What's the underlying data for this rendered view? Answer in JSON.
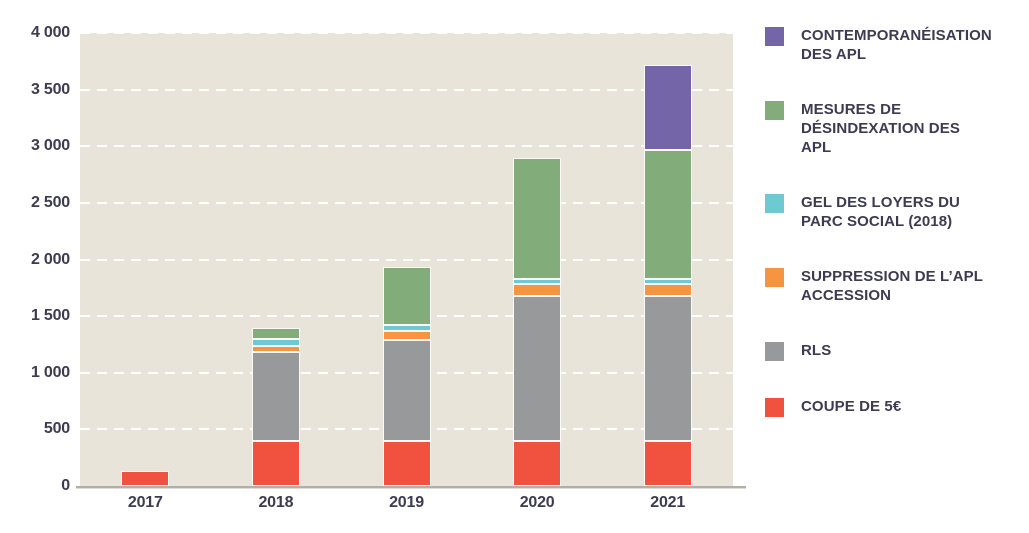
{
  "chart_data": {
    "type": "bar",
    "stacked": true,
    "categories": [
      "2017",
      "2018",
      "2019",
      "2020",
      "2021"
    ],
    "series": [
      {
        "key": "coupe-de-5e",
        "name": "COUPE DE 5€",
        "color": "#f0523f",
        "values": [
          130,
          400,
          400,
          400,
          400
        ],
        "legend_lines": [
          "COUPE DE 5€"
        ]
      },
      {
        "key": "rls",
        "name": "RLS",
        "color": "#98999b",
        "values": [
          0,
          780,
          890,
          1280,
          1280
        ],
        "legend_lines": [
          "RLS"
        ]
      },
      {
        "key": "suppression-apl-accession",
        "name": "SUPPRESSION DE L’APL ACCESSION",
        "color": "#f79441",
        "values": [
          0,
          60,
          75,
          100,
          100
        ],
        "legend_lines": [
          "SUPPRESSION DE L’APL",
          "ACCESSION"
        ]
      },
      {
        "key": "gel-loyers-parc-social",
        "name": "GEL DES LOYERS DU PARC SOCIAL (2018)",
        "color": "#6fc9d2",
        "values": [
          0,
          60,
          60,
          50,
          50
        ],
        "legend_lines": [
          "GEL DES LOYERS DU",
          "PARC SOCIAL (2018)"
        ]
      },
      {
        "key": "desindexation-apl",
        "name": "MESURES DE DÉSINDEXATION DES APL",
        "color": "#82ac79",
        "values": [
          0,
          100,
          510,
          1070,
          1140
        ],
        "legend_lines": [
          "MESURES DE",
          "DÉSINDEXATION DES",
          "APL"
        ]
      },
      {
        "key": "contemporaneisation-apl",
        "name": "CONTEMPORANÉISATION DES APL",
        "color": "#7464a8",
        "values": [
          0,
          0,
          0,
          0,
          750
        ],
        "legend_lines": [
          "CONTEMPORANÉISATION",
          "DES APL"
        ]
      }
    ],
    "totals": [
      130,
      1400,
      1935,
      2900,
      3720
    ],
    "ylim": [
      0,
      4000
    ],
    "ytick_step": 500,
    "ytick_labels": [
      "0",
      "500",
      "1 000",
      "1 500",
      "2 000",
      "2 500",
      "3 000",
      "3 500",
      "4 000"
    ],
    "grid": "horizontal-dashed-white",
    "legend_position": "right",
    "legend_order_top_to_bottom": [
      "CONTEMPORANÉISATION DES APL",
      "MESURES DE DÉSINDEXATION DES APL",
      "GEL DES LOYERS DU PARC SOCIAL (2018)",
      "SUPPRESSION DE L’APL ACCESSION",
      "RLS",
      "COUPE DE 5€"
    ],
    "colors": {
      "plot_background": "#e8e4da",
      "gridline": "#ffffff",
      "axis_line": "#b2afa9",
      "text": "#3c3b52"
    }
  }
}
